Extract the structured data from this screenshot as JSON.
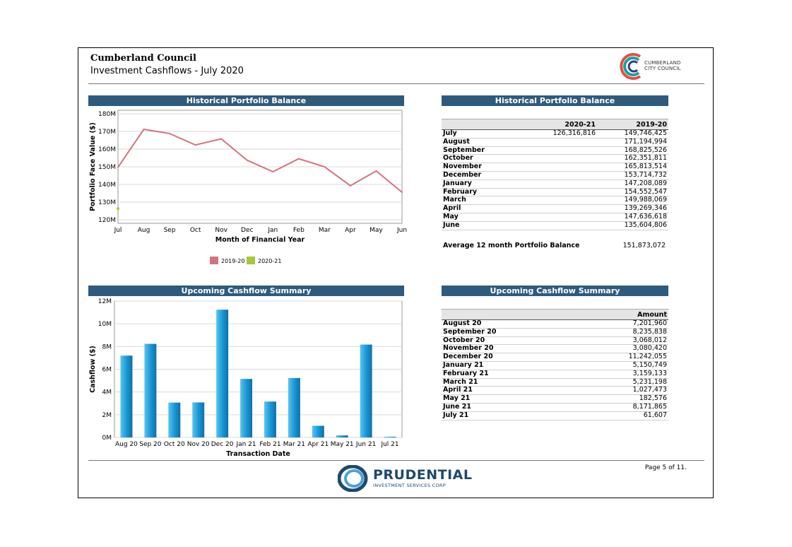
{
  "header": {
    "council_name": "Cumberland Council",
    "report_title": "Investment Cashflows - July 2020",
    "logo_text_line1": "CUMBERLAND",
    "logo_text_line2": "CITY COUNCIL"
  },
  "panels": {
    "balance_chart_title": "Historical Portfolio Balance",
    "balance_table_title": "Historical Portfolio Balance",
    "cashflow_chart_title": "Upcoming Cashflow Summary",
    "cashflow_table_title": "Upcoming Cashflow Summary"
  },
  "balance_table": {
    "col1": "2020-21",
    "col2": "2019-20",
    "rows": [
      {
        "month": "July",
        "v2021": "126,316,816",
        "v1920": "149,746,425"
      },
      {
        "month": "August",
        "v2021": "",
        "v1920": "171,194,994"
      },
      {
        "month": "September",
        "v2021": "",
        "v1920": "168,825,526"
      },
      {
        "month": "October",
        "v2021": "",
        "v1920": "162,351,811"
      },
      {
        "month": "November",
        "v2021": "",
        "v1920": "165,813,514"
      },
      {
        "month": "December",
        "v2021": "",
        "v1920": "153,714,732"
      },
      {
        "month": "January",
        "v2021": "",
        "v1920": "147,208,089"
      },
      {
        "month": "February",
        "v2021": "",
        "v1920": "154,552,547"
      },
      {
        "month": "March",
        "v2021": "",
        "v1920": "149,988,069"
      },
      {
        "month": "April",
        "v2021": "",
        "v1920": "139,269,346"
      },
      {
        "month": "May",
        "v2021": "",
        "v1920": "147,636,618"
      },
      {
        "month": "June",
        "v2021": "",
        "v1920": "135,604,806"
      }
    ],
    "avg_label": "Average 12 month Portfolio Balance",
    "avg_value": "151,873,072"
  },
  "cashflow_table": {
    "col": "Amount",
    "rows": [
      {
        "date": "August 20",
        "amount": "7,201,960"
      },
      {
        "date": "September 20",
        "amount": "8,235,838"
      },
      {
        "date": "October 20",
        "amount": "3,068,012"
      },
      {
        "date": "November 20",
        "amount": "3,080,420"
      },
      {
        "date": "December 20",
        "amount": "11,242,055"
      },
      {
        "date": "January 21",
        "amount": "5,150,749"
      },
      {
        "date": "February 21",
        "amount": "3,159,133"
      },
      {
        "date": "March 21",
        "amount": "5,231,198"
      },
      {
        "date": "April 21",
        "amount": "1,027,473"
      },
      {
        "date": "May 21",
        "amount": "182,576"
      },
      {
        "date": "June 21",
        "amount": "8,171,865"
      },
      {
        "date": "July 21",
        "amount": "61,607"
      }
    ]
  },
  "chart_data": [
    {
      "type": "line",
      "title": "Historical Portfolio Balance",
      "xlabel": "Month of Financial Year",
      "ylabel": "Portfolio Face Value ($)",
      "categories": [
        "Jul",
        "Aug",
        "Sep",
        "Oct",
        "Nov",
        "Dec",
        "Jan",
        "Feb",
        "Mar",
        "Apr",
        "May",
        "Jun"
      ],
      "yticks": [
        "120M",
        "130M",
        "140M",
        "150M",
        "160M",
        "170M",
        "180M"
      ],
      "ylim": [
        118000000,
        182000000
      ],
      "legend_position": "bottom",
      "series": [
        {
          "name": "2019-20",
          "color": "#d4737f",
          "values": [
            149746425,
            171194994,
            168825526,
            162351811,
            165813514,
            153714732,
            147208089,
            154552547,
            149988069,
            139269346,
            147636618,
            135604806
          ]
        },
        {
          "name": "2020-21",
          "color": "#a8c63a",
          "values": [
            126316816,
            null,
            null,
            null,
            null,
            null,
            null,
            null,
            null,
            null,
            null,
            null
          ]
        }
      ]
    },
    {
      "type": "bar",
      "title": "Upcoming Cashflow Summary",
      "xlabel": "Transaction Date",
      "ylabel": "Cashflow ($)",
      "categories": [
        "Aug 20",
        "Sep 20",
        "Oct 20",
        "Nov 20",
        "Dec 20",
        "Jan 21",
        "Feb 21",
        "Mar 21",
        "Apr 21",
        "May 21",
        "Jun 21",
        "Jul 21"
      ],
      "yticks": [
        "0M",
        "2M",
        "4M",
        "6M",
        "8M",
        "10M",
        "12M"
      ],
      "ylim": [
        0,
        12000000
      ],
      "color": "#1a9ad6",
      "values": [
        7201960,
        8235838,
        3068012,
        3080420,
        11242055,
        5150749,
        3159133,
        5231198,
        1027473,
        182576,
        8171865,
        61607
      ]
    }
  ],
  "footer": {
    "page_number": "Page 5 of 11.",
    "prudential_name": "PRUDENTIAL",
    "prudential_sub": "INVESTMENT SERVICES CORP"
  }
}
